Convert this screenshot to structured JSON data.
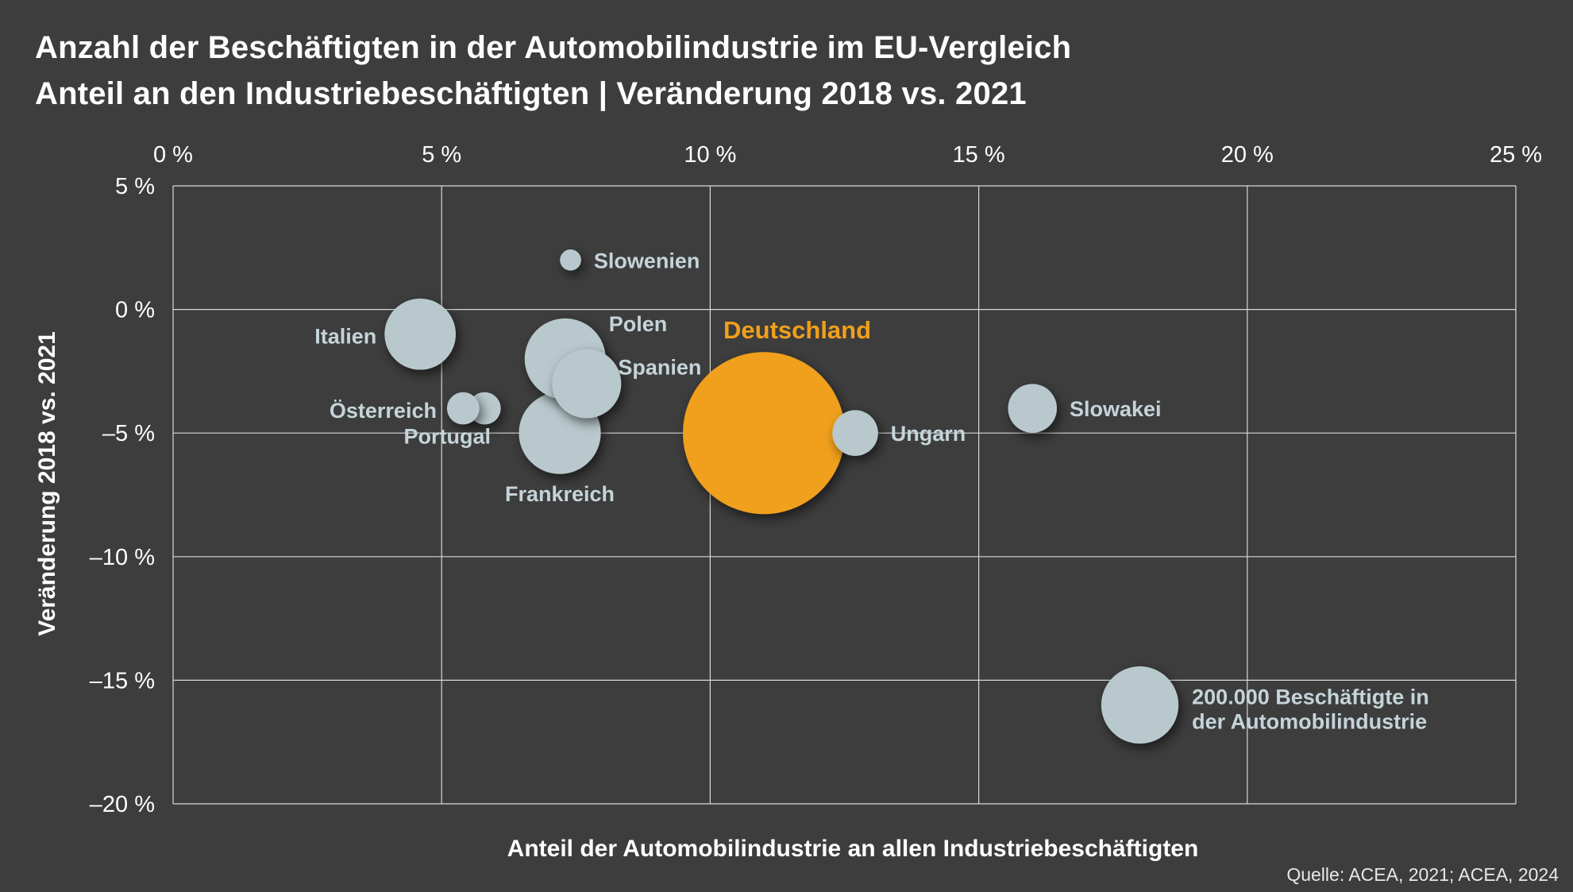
{
  "title_line1": "Anzahl der Beschäftigten in der Automobilindustrie im EU-Vergleich",
  "title_line2": "Anteil an den Industriebeschäftigten | Veränderung 2018 vs. 2021",
  "source": "Quelle: ACEA, 2021; ACEA, 2024",
  "colors": {
    "background": "#3d3d3d",
    "bubble": "#b8c8cc",
    "highlight": "#f0a01a",
    "label": "#c5d4d9",
    "grid": "#d8d8d8",
    "text": "#ffffff"
  },
  "chart_data": {
    "type": "bubble",
    "title": "Anzahl der Beschäftigten in der Automobilindustrie im EU-Vergleich",
    "subtitle": "Anteil an den Industriebeschäftigten | Veränderung 2018 vs. 2021",
    "xlabel": "Anteil der Automobilindustrie an allen Industriebeschäftigten",
    "ylabel": "Veränderung 2018 vs. 2021",
    "xlim": [
      0,
      25
    ],
    "ylim": [
      -20,
      5
    ],
    "x_ticks": [
      0,
      5,
      10,
      15,
      20,
      25
    ],
    "x_tick_labels": [
      "0 %",
      "5 %",
      "10 %",
      "15 %",
      "20 %",
      "25 %"
    ],
    "y_ticks": [
      5,
      0,
      -5,
      -10,
      -15,
      -20
    ],
    "y_tick_labels": [
      "5 %",
      "0 %",
      "–5 %",
      "–10 %",
      "–15 %",
      "–20 %"
    ],
    "x_axis_position": "top",
    "grid": true,
    "size_unit": "Beschäftigte",
    "points": [
      {
        "name": "Slowenien",
        "x": 7.4,
        "y": 2.0,
        "employees": 15000,
        "label_side": "right",
        "highlight": false
      },
      {
        "name": "Italien",
        "x": 4.6,
        "y": -1.0,
        "employees": 170000,
        "label_side": "left",
        "highlight": false
      },
      {
        "name": "Polen",
        "x": 7.3,
        "y": -2.0,
        "employees": 220000,
        "label_side": "upper-right",
        "highlight": false
      },
      {
        "name": "Spanien",
        "x": 7.7,
        "y": -3.0,
        "employees": 160000,
        "label_side": "upper-right",
        "highlight": false
      },
      {
        "name": "Österreich",
        "x": 5.8,
        "y": -4.0,
        "employees": 35000,
        "label_side": "left",
        "highlight": false
      },
      {
        "name": "Portugal",
        "x": 5.4,
        "y": -4.0,
        "employees": 35000,
        "label_side": "below",
        "highlight": false
      },
      {
        "name": "Frankreich",
        "x": 7.2,
        "y": -5.0,
        "employees": 225000,
        "label_side": "below",
        "highlight": false
      },
      {
        "name": "Deutschland",
        "x": 11.0,
        "y": -5.0,
        "employees": 880000,
        "label_side": "above",
        "highlight": true
      },
      {
        "name": "Ungarn",
        "x": 12.7,
        "y": -5.0,
        "employees": 70000,
        "label_side": "right",
        "highlight": false
      },
      {
        "name": "Slowakei",
        "x": 16.0,
        "y": -4.0,
        "employees": 80000,
        "label_side": "right",
        "highlight": false
      }
    ],
    "size_legend": {
      "label_line1": "200.000 Beschäftigte in",
      "label_line2": "der Automobilindustrie",
      "employees": 200000,
      "x": 18.0,
      "y": -16.0
    }
  }
}
